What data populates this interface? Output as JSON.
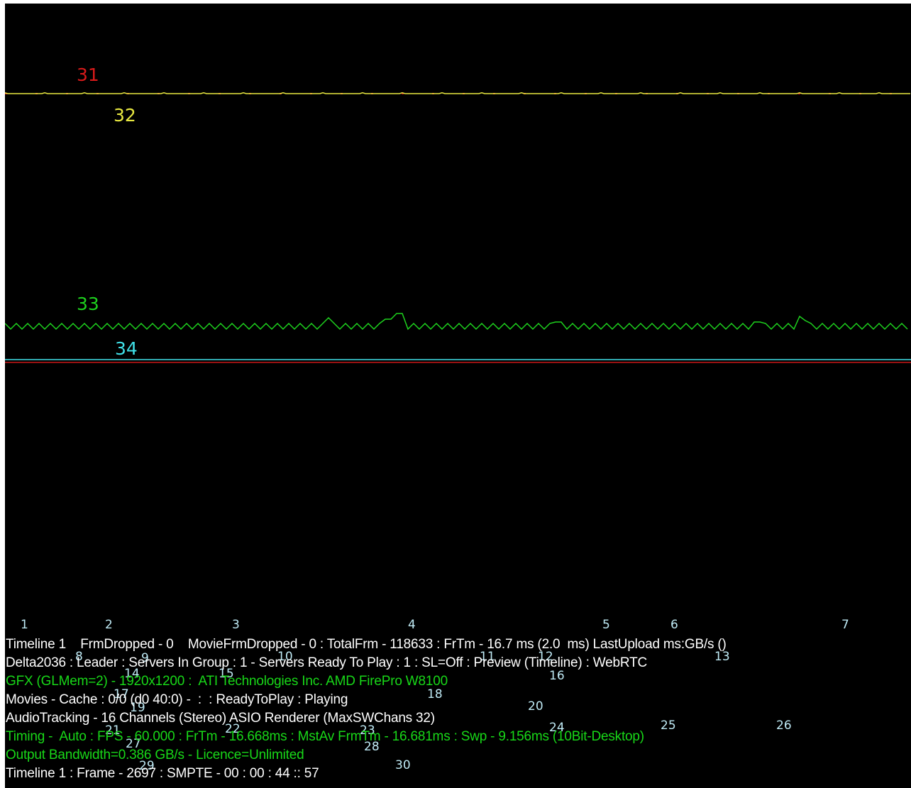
{
  "colors": {
    "background": "#000000",
    "text_white": "#ffffff",
    "text_green": "#18d818",
    "marker": "#bfeaf5",
    "trace_red": "#d81a1a",
    "trace_yellow": "#e8e840",
    "trace_green": "#1ed21e",
    "trace_cyan": "#40e0e8"
  },
  "graph": {
    "labels": {
      "l31": "31",
      "l32": "32",
      "l33": "33",
      "l34": "34"
    }
  },
  "markers": [
    "1",
    "2",
    "3",
    "4",
    "5",
    "6",
    "7",
    "8",
    "9",
    "10",
    "11",
    "12",
    "13",
    "14",
    "15",
    "16",
    "17",
    "18",
    "19",
    "20",
    "21",
    "22",
    "23",
    "24",
    "25",
    "26",
    "27",
    "28",
    "29",
    "30"
  ],
  "stats": {
    "line1": "Timeline 1    FrmDropped - 0    MovieFrmDropped - 0 : TotalFrm - 118633 : FrTm - 16.7 ms (2.0  ms) LastUpload ms:GB/s ()",
    "line2": "Delta2036 : Leader : Servers In Group : 1 - Servers Ready To Play : 1 : SL=Off : Preview (Timeline) : WebRTC",
    "line3": "GFX (GLMem=2) - 1920x1200 :  ATI Technologies Inc. AMD FirePro W8100",
    "line4": "Movies - Cache : 0/0 (d0 40:0) -  :  : ReadyToPlay : Playing",
    "line5": "AudioTracking - 16 Channels (Stereo) ASIO Renderer (MaxSWChans 32)",
    "line6": "Timing -  Auto : FPS - 60.000 : FrTm - 16.668ms : MstAv FrmTm - 16.681ms : Swp - 9.156ms (10Bit-Desktop)",
    "line7": "Output Bandwidth=0.386 GB/s - Licence=Unlimited",
    "line8": "Timeline 1 : Frame - 2697 : SMPTE - 00 : 00 : 44 :: 57"
  }
}
